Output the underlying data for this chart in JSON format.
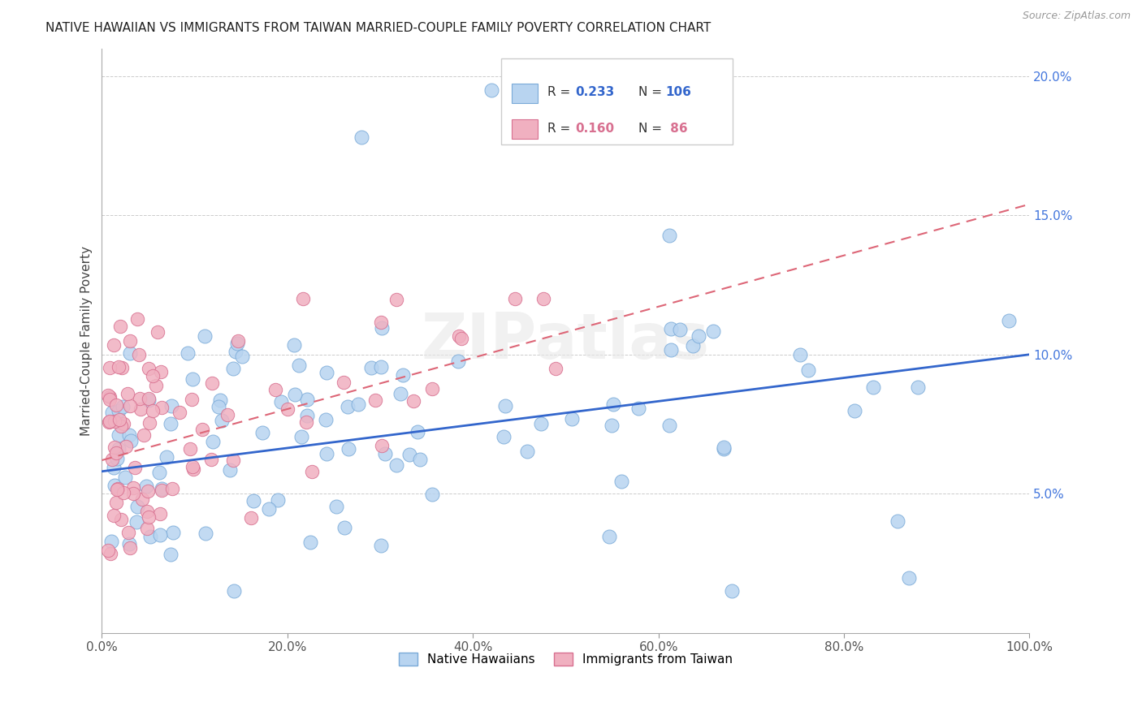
{
  "title": "NATIVE HAWAIIAN VS IMMIGRANTS FROM TAIWAN MARRIED-COUPLE FAMILY POVERTY CORRELATION CHART",
  "source": "Source: ZipAtlas.com",
  "ylabel": "Married-Couple Family Poverty",
  "blue_color": "#b8d4f0",
  "pink_color": "#f0b0c0",
  "blue_edge": "#7aaad8",
  "pink_edge": "#d87090",
  "blue_line_color": "#3366cc",
  "pink_line_color": "#dd6677",
  "tick_color": "#4477dd",
  "watermark": "ZIPatlas",
  "xlim": [
    0,
    100
  ],
  "ylim": [
    0,
    21
  ],
  "xtick_labels": [
    "0.0%",
    "",
    "",
    "",
    "",
    "20.0%",
    "",
    "",
    "",
    "",
    "40.0%",
    "",
    "",
    "",
    "",
    "60.0%",
    "",
    "",
    "",
    "",
    "80.0%",
    "",
    "",
    "",
    "",
    "100.0%"
  ],
  "ytick_labels": [
    "",
    "5.0%",
    "10.0%",
    "15.0%",
    "20.0%"
  ],
  "blue_intercept": 5.8,
  "blue_slope": 0.042,
  "pink_intercept": 6.2,
  "pink_slope": 0.092,
  "title_fontsize": 11,
  "axis_label_fontsize": 11,
  "tick_fontsize": 11,
  "legend_blue_r": "0.233",
  "legend_blue_n": "106",
  "legend_pink_r": "0.160",
  "legend_pink_n": " 86"
}
